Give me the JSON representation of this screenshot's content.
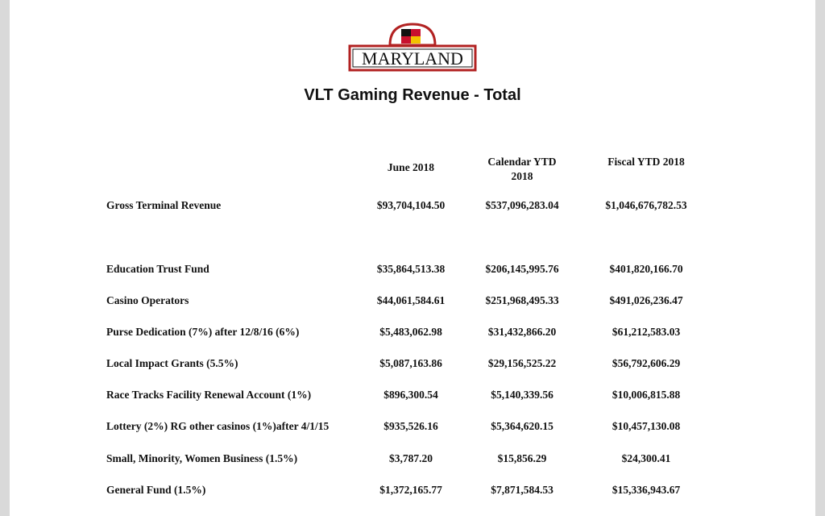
{
  "header": {
    "logo": "MARYLAND",
    "title": "VLT Gaming Revenue - Total"
  },
  "table": {
    "columns": [
      "June 2018",
      "Calendar YTD 2018",
      "Fiscal YTD 2018"
    ],
    "rows": [
      [
        "Gross Terminal Revenue",
        "$93,704,104.50",
        "$537,096,283.04",
        "$1,046,676,782.53"
      ],
      [
        "Education Trust Fund",
        "$35,864,513.38",
        "$206,145,995.76",
        "$401,820,166.70"
      ],
      [
        "Casino Operators",
        "$44,061,584.61",
        "$251,968,495.33",
        "$491,026,236.47"
      ],
      [
        "Purse Dedication (7%) after 12/8/16 (6%)",
        "$5,483,062.98",
        "$31,432,866.20",
        "$61,212,583.03"
      ],
      [
        "Local Impact Grants (5.5%)",
        "$5,087,163.86",
        "$29,156,525.22",
        "$56,792,606.29"
      ],
      [
        "Race Tracks Facility Renewal Account (1%)",
        "$896,300.54",
        "$5,140,339.56",
        "$10,006,815.88"
      ],
      [
        "Lottery (2%) RG other casinos (1%)after 4/1/15",
        "$935,526.16",
        "$5,364,620.15",
        "$10,457,130.08"
      ],
      [
        "Small, Minority, Women Business (1.5%)",
        "$3,787.20",
        "$15,856.29",
        "$24,300.41"
      ],
      [
        "General Fund (1.5%)",
        "$1,372,165.77",
        "$7,871,584.53",
        "$15,336,943.67"
      ]
    ]
  }
}
